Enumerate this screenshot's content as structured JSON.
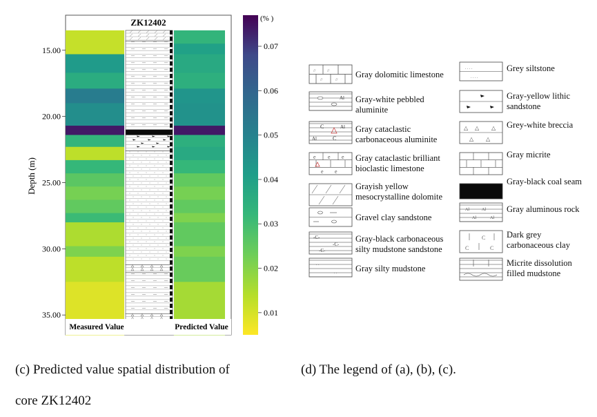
{
  "chart_data": {
    "type": "heatmap",
    "title": "ZK12402",
    "ylabel": "Depth (m)",
    "ylim": [
      13.5,
      36.5
    ],
    "yticks": [
      "15.00",
      "20.00",
      "25.00",
      "30.00",
      "35.00"
    ],
    "ytick_values": [
      15,
      20,
      25,
      30,
      35
    ],
    "columns": [
      "Measured Value",
      "Predicted Value"
    ],
    "colorbar": {
      "unit": "(% )",
      "ticks": [
        "0.01",
        "0.02",
        "0.03",
        "0.04",
        "0.05",
        "0.06",
        "0.07"
      ],
      "tick_values": [
        0.01,
        0.02,
        0.03,
        0.04,
        0.05,
        0.06,
        0.07
      ],
      "range": [
        0.005,
        0.077
      ]
    },
    "measured": [
      {
        "top": 13.5,
        "bottom": 15.3,
        "value": 0.012
      },
      {
        "top": 15.3,
        "bottom": 16.7,
        "value": 0.042
      },
      {
        "top": 16.7,
        "bottom": 17.9,
        "value": 0.036
      },
      {
        "top": 17.9,
        "bottom": 19.0,
        "value": 0.052
      },
      {
        "top": 19.0,
        "bottom": 20.7,
        "value": 0.046
      },
      {
        "top": 20.7,
        "bottom": 21.4,
        "value": 0.074
      },
      {
        "top": 21.4,
        "bottom": 22.3,
        "value": 0.033
      },
      {
        "top": 22.3,
        "bottom": 23.3,
        "value": 0.013
      },
      {
        "top": 23.3,
        "bottom": 24.3,
        "value": 0.032
      },
      {
        "top": 24.3,
        "bottom": 25.3,
        "value": 0.026
      },
      {
        "top": 25.3,
        "bottom": 26.3,
        "value": 0.022
      },
      {
        "top": 26.3,
        "bottom": 27.3,
        "value": 0.025
      },
      {
        "top": 27.3,
        "bottom": 28.0,
        "value": 0.031
      },
      {
        "top": 28.0,
        "bottom": 29.8,
        "value": 0.015
      },
      {
        "top": 29.8,
        "bottom": 30.6,
        "value": 0.021
      },
      {
        "top": 30.6,
        "bottom": 32.5,
        "value": 0.013
      },
      {
        "top": 32.5,
        "bottom": 36.5,
        "value": 0.009
      }
    ],
    "predicted": [
      {
        "top": 13.5,
        "bottom": 14.5,
        "value": 0.033
      },
      {
        "top": 14.5,
        "bottom": 15.3,
        "value": 0.04
      },
      {
        "top": 15.3,
        "bottom": 16.7,
        "value": 0.037
      },
      {
        "top": 16.7,
        "bottom": 17.9,
        "value": 0.035
      },
      {
        "top": 17.9,
        "bottom": 19.0,
        "value": 0.044
      },
      {
        "top": 19.0,
        "bottom": 20.7,
        "value": 0.045
      },
      {
        "top": 20.7,
        "bottom": 21.4,
        "value": 0.074
      },
      {
        "top": 21.4,
        "bottom": 22.3,
        "value": 0.035
      },
      {
        "top": 22.3,
        "bottom": 23.3,
        "value": 0.037
      },
      {
        "top": 23.3,
        "bottom": 24.3,
        "value": 0.032
      },
      {
        "top": 24.3,
        "bottom": 25.3,
        "value": 0.025
      },
      {
        "top": 25.3,
        "bottom": 26.3,
        "value": 0.022
      },
      {
        "top": 26.3,
        "bottom": 27.3,
        "value": 0.025
      },
      {
        "top": 27.3,
        "bottom": 28.0,
        "value": 0.021
      },
      {
        "top": 28.0,
        "bottom": 29.8,
        "value": 0.025
      },
      {
        "top": 29.8,
        "bottom": 30.6,
        "value": 0.021
      },
      {
        "top": 30.6,
        "bottom": 32.5,
        "value": 0.024
      },
      {
        "top": 32.5,
        "bottom": 36.5,
        "value": 0.016
      }
    ],
    "lithology": [
      {
        "top": 13.5,
        "bottom": 14.3,
        "pattern": "dolomitic"
      },
      {
        "top": 14.3,
        "bottom": 21.0,
        "pattern": "mudstone"
      },
      {
        "top": 21.0,
        "bottom": 21.4,
        "pattern": "coal"
      },
      {
        "top": 21.4,
        "bottom": 22.6,
        "pattern": "lithic"
      },
      {
        "top": 22.6,
        "bottom": 31.2,
        "pattern": "siltstone"
      },
      {
        "top": 31.2,
        "bottom": 31.8,
        "pattern": "breccia"
      },
      {
        "top": 31.8,
        "bottom": 34.9,
        "pattern": "mudstone"
      },
      {
        "top": 34.9,
        "bottom": 36.5,
        "pattern": "breccia"
      }
    ]
  },
  "legend": {
    "left": [
      {
        "label": "Gray dolomitic limestone",
        "icon": "dolomitic-limestone-pattern"
      },
      {
        "label": "Gray-white pebbled aluminite",
        "icon": "pebbled-aluminite-pattern"
      },
      {
        "label": "Gray cataclastic carbonaceous aluminite",
        "icon": "cataclastic-aluminite-pattern"
      },
      {
        "label": "Gray cataclastic brilliant bioclastic limestone",
        "icon": "bioclastic-limestone-pattern"
      },
      {
        "label": "Grayish yellow mesocrystalline dolomite",
        "icon": "dolomite-pattern"
      },
      {
        "label": "Gravel clay sandstone",
        "icon": "gravel-sandstone-pattern"
      },
      {
        "label": "Gray-black carbonaceous silty mudstone sandstone",
        "icon": "carbonaceous-mudstone-pattern"
      },
      {
        "label": "Gray silty mudstone",
        "icon": "silty-mudstone-pattern"
      }
    ],
    "right": [
      {
        "label": "Grey siltstone",
        "icon": "siltstone-pattern"
      },
      {
        "label": "Gray-yellow lithic sandstone",
        "icon": "lithic-sandstone-pattern"
      },
      {
        "label": "Grey-white breccia",
        "icon": "breccia-pattern"
      },
      {
        "label": "Gray micrite",
        "icon": "micrite-pattern"
      },
      {
        "label": "Gray-black coal seam",
        "icon": "coal-seam-pattern"
      },
      {
        "label": "Gray aluminous rock",
        "icon": "aluminous-rock-pattern"
      },
      {
        "label": "Dark grey carbonaceous clay",
        "icon": "carbonaceous-clay-pattern"
      },
      {
        "label": "Micrite dissolution filled mudstone",
        "icon": "dissolution-mudstone-pattern"
      }
    ]
  },
  "captions": {
    "c_line1": "(c) Predicted value spatial distribution of",
    "c_line2": "core ZK12402",
    "d": "(d) The legend of (a), (b), (c)."
  }
}
